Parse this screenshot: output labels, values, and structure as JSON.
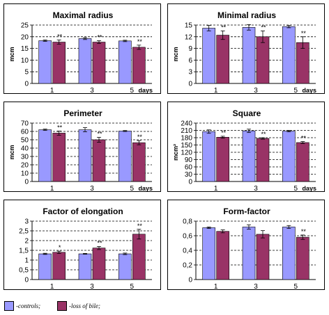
{
  "colors": {
    "controls": "#9999ff",
    "loss_of_bile": "#993366"
  },
  "legend": {
    "controls_label": "-controls;",
    "loss_label": "-loss of bile;"
  },
  "chart_data": [
    {
      "type": "bar",
      "title": "Maximal radius",
      "ylabel": "mcm",
      "xunit": "days",
      "categories": [
        "1",
        "3",
        "5"
      ],
      "ylim": [
        0,
        25
      ],
      "yticks": [
        "0",
        "5",
        "10",
        "15",
        "20",
        "25"
      ],
      "grid": true,
      "series": [
        {
          "name": "-controls;",
          "values": [
            18.3,
            19.2,
            18.2
          ],
          "err": [
            0.3,
            0.4,
            0.3
          ],
          "marks": [
            "",
            "",
            ""
          ]
        },
        {
          "name": "-loss of bile;",
          "values": [
            17.7,
            17.7,
            15.5
          ],
          "err": [
            0.9,
            0.6,
            0.9
          ],
          "marks": [
            "**",
            "**",
            "**"
          ]
        }
      ]
    },
    {
      "type": "bar",
      "title": "Minimal radius",
      "ylabel": "mcm",
      "xunit": "days",
      "categories": [
        "1",
        "3",
        "5"
      ],
      "ylim": [
        0,
        15
      ],
      "yticks": [
        "0",
        "3",
        "6",
        "9",
        "12",
        "15"
      ],
      "grid": true,
      "series": [
        {
          "name": "-controls;",
          "values": [
            14.2,
            14.4,
            14.6
          ],
          "err": [
            0.7,
            0.7,
            0.3
          ],
          "marks": [
            "",
            "",
            ""
          ]
        },
        {
          "name": "-loss of bile;",
          "values": [
            12.4,
            12.0,
            10.5
          ],
          "err": [
            1.1,
            1.5,
            1.5
          ],
          "marks": [
            "**",
            "**",
            "**"
          ]
        }
      ]
    },
    {
      "type": "bar",
      "title": "Perimeter",
      "ylabel": "mcm",
      "xunit": "days",
      "categories": [
        "1",
        "3",
        "5"
      ],
      "ylim": [
        0,
        70
      ],
      "yticks": [
        "0",
        "10",
        "20",
        "30",
        "40",
        "50",
        "60",
        "70"
      ],
      "grid": true,
      "series": [
        {
          "name": "-controls;",
          "values": [
            62,
            62,
            60.5
          ],
          "err": [
            0.8,
            2.5,
            0.6
          ],
          "marks": [
            "",
            "",
            ""
          ]
        },
        {
          "name": "-loss of bile;",
          "values": [
            58,
            50,
            46.5
          ],
          "err": [
            2.5,
            3.0,
            2.5
          ],
          "marks": [
            "**",
            "**",
            "**"
          ]
        }
      ]
    },
    {
      "type": "bar",
      "title": "Square",
      "ylabel": "mcm²",
      "xunit": "days",
      "categories": [
        "1",
        "3",
        "5"
      ],
      "ylim": [
        0,
        240
      ],
      "yticks": [
        "0",
        "30",
        "60",
        "90",
        "120",
        "150",
        "180",
        "210",
        "240"
      ],
      "grid": true,
      "series": [
        {
          "name": "-controls;",
          "values": [
            205,
            208,
            207
          ],
          "err": [
            7,
            7,
            3
          ],
          "marks": [
            "",
            "",
            ""
          ]
        },
        {
          "name": "-loss of bile;",
          "values": [
            182,
            177,
            160
          ],
          "err": [
            4,
            3,
            4
          ],
          "marks": [
            "**",
            "**",
            "**"
          ]
        }
      ]
    },
    {
      "type": "bar",
      "title": "Factor of elongation",
      "ylabel": "",
      "xunit": "",
      "categories": [
        "1",
        "3",
        "5"
      ],
      "ylim": [
        0,
        3
      ],
      "yticks": [
        "0",
        "0,5",
        "1",
        "1,5",
        "2",
        "2,5",
        "3"
      ],
      "grid": true,
      "series": [
        {
          "name": "-controls;",
          "values": [
            1.32,
            1.32,
            1.32
          ],
          "err": [
            0.03,
            0.02,
            0.04
          ],
          "marks": [
            "",
            "",
            ""
          ]
        },
        {
          "name": "-loss of bile;",
          "values": [
            1.4,
            1.62,
            2.33
          ],
          "err": [
            0.06,
            0.08,
            0.25
          ],
          "marks": [
            "*",
            "**",
            "**"
          ]
        }
      ]
    },
    {
      "type": "bar",
      "title": "Form-factor",
      "ylabel": "",
      "xunit": "",
      "categories": [
        "1",
        "3",
        "5"
      ],
      "ylim": [
        0,
        0.8
      ],
      "yticks": [
        "0",
        "0,2",
        "0,4",
        "0,6",
        "0,8"
      ],
      "grid": true,
      "series": [
        {
          "name": "-controls;",
          "values": [
            0.71,
            0.72,
            0.72
          ],
          "err": [
            0.01,
            0.03,
            0.02
          ],
          "marks": [
            "",
            "",
            ""
          ]
        },
        {
          "name": "-loss of bile;",
          "values": [
            0.66,
            0.62,
            0.58
          ],
          "err": [
            0.02,
            0.05,
            0.03
          ],
          "marks": [
            "",
            "",
            "**"
          ]
        }
      ]
    }
  ]
}
